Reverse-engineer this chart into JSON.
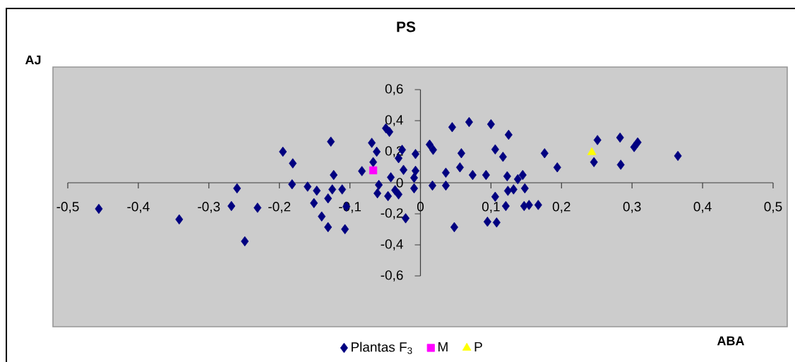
{
  "chart_data": {
    "type": "scatter",
    "title": "PS",
    "xlabel": "ABA",
    "ylabel": "AJ",
    "legend": "bottom",
    "xlim": [
      -0.5,
      0.5
    ],
    "ylim": [
      -0.6,
      0.6
    ],
    "xticks": [
      {
        "value": -0.5,
        "label": "-0,5"
      },
      {
        "value": -0.4,
        "label": "-0,4"
      },
      {
        "value": -0.3,
        "label": "-0,3"
      },
      {
        "value": -0.2,
        "label": "-0,2"
      },
      {
        "value": -0.1,
        "label": "-0,1"
      },
      0,
      {
        "value": 0.1,
        "label": "0,1"
      },
      {
        "value": 0.2,
        "label": "0,2"
      },
      {
        "value": 0.3,
        "label": "0,3"
      },
      {
        "value": 0.4,
        "label": "0,4"
      },
      {
        "value": 0.5,
        "label": "0,5"
      }
    ],
    "yticks": [
      {
        "value": -0.6,
        "label": "-0,6"
      },
      {
        "value": -0.4,
        "label": "-0,4"
      },
      {
        "value": -0.2,
        "label": "-0,2"
      },
      0,
      {
        "value": 0.2,
        "label": "0,2"
      },
      {
        "value": 0.4,
        "label": "0,4"
      },
      {
        "value": 0.6,
        "label": "0,6"
      }
    ],
    "series": [
      {
        "name": "Plantas F$_{3}$",
        "color": "#000080",
        "marker": "diamond",
        "x": [
          -0.456,
          -0.342,
          -0.26,
          -0.268,
          -0.249,
          -0.231,
          -0.195,
          -0.181,
          -0.182,
          -0.16,
          -0.147,
          -0.151,
          -0.14,
          -0.131,
          -0.131,
          -0.127,
          -0.123,
          -0.125,
          -0.111,
          -0.105,
          -0.107,
          -0.083,
          -0.069,
          -0.067,
          -0.062,
          -0.059,
          -0.061,
          -0.046,
          -0.049,
          -0.044,
          -0.042,
          -0.036,
          -0.031,
          -0.031,
          -0.024,
          -0.026,
          -0.021,
          -0.007,
          -0.007,
          -0.009,
          -0.009,
          0.013,
          0.018,
          0.017,
          0.036,
          0.036,
          0.045,
          0.048,
          0.058,
          0.056,
          0.069,
          0.074,
          0.093,
          0.095,
          0.1,
          0.106,
          0.106,
          0.108,
          0.117,
          0.121,
          0.123,
          0.125,
          0.124,
          0.132,
          0.138,
          0.145,
          0.148,
          0.147,
          0.154,
          0.167,
          0.176,
          0.194,
          0.246,
          0.251,
          0.283,
          0.284,
          0.303,
          0.308,
          0.365
        ],
        "values": [
          -0.168,
          -0.236,
          -0.036,
          -0.15,
          -0.377,
          -0.161,
          0.2,
          0.125,
          -0.01,
          -0.025,
          -0.051,
          -0.131,
          -0.217,
          -0.286,
          -0.101,
          0.265,
          0.05,
          -0.043,
          -0.043,
          -0.153,
          -0.299,
          0.075,
          0.257,
          0.133,
          0.2,
          -0.014,
          -0.068,
          -0.086,
          0.351,
          0.328,
          0.035,
          -0.048,
          -0.075,
          0.158,
          0.083,
          0.212,
          -0.229,
          0.185,
          0.077,
          0.032,
          -0.036,
          0.246,
          0.212,
          -0.018,
          0.065,
          -0.018,
          0.358,
          -0.286,
          0.19,
          0.099,
          0.391,
          0.05,
          0.05,
          -0.251,
          0.377,
          0.215,
          -0.09,
          -0.256,
          0.167,
          -0.15,
          0.042,
          0.309,
          -0.052,
          -0.043,
          0.023,
          0.05,
          -0.036,
          -0.15,
          -0.143,
          -0.143,
          0.19,
          0.099,
          0.133,
          0.275,
          0.291,
          0.116,
          0.23,
          0.26,
          0.173
        ]
      },
      {
        "name": "M",
        "color": "#ff00ff",
        "marker": "square",
        "x": [
          -0.067
        ],
        "values": [
          0.08
        ]
      },
      {
        "name": "P",
        "color": "#ffff00",
        "marker": "triangle",
        "x": [
          0.243
        ],
        "values": [
          0.196
        ]
      }
    ]
  }
}
